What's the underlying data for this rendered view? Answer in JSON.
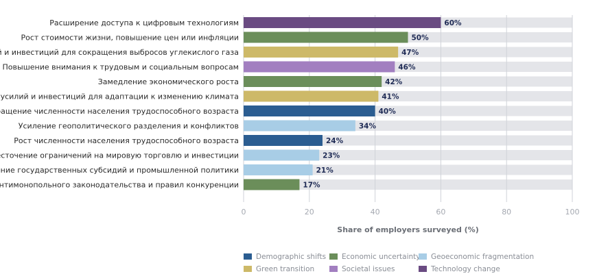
{
  "chart_data": {
    "type": "bar",
    "orientation": "horizontal",
    "categories": [
      "Расширение доступа к цифровым технологиям",
      "Рост стоимости жизни, повышение цен или инфляции",
      "Увеличение усилий и инвестиций для сокращения выбросов углекислого газа",
      "Повышение внимания к трудовым и социальным вопросам",
      "Замедление экономического роста",
      "Увеличение усилий и инвестиций для адаптации к изменению климата",
      "Старение и сокращение численности населения трудоспособного возраста",
      "Усиление геополитического разделения и конфликтов",
      "Рост численности населения трудоспособного возраста",
      "Ужесточение ограничений на мировую торговлю и инвестиции",
      "Увеличение государственных субсидий и промышленной политики",
      "Ужесточение антимонопольного законодательства и правил конкуренции"
    ],
    "values": [
      60,
      50,
      47,
      46,
      42,
      41,
      40,
      34,
      24,
      23,
      21,
      17
    ],
    "value_labels": [
      "60%",
      "50%",
      "47%",
      "46%",
      "42%",
      "41%",
      "40%",
      "34%",
      "24%",
      "23%",
      "21%",
      "17%"
    ],
    "bar_groups": [
      "Technology change",
      "Economic uncertainty",
      "Green transition",
      "Societal issues",
      "Economic uncertainty",
      "Green transition",
      "Demographic shifts",
      "Geoeconomic fragmentation",
      "Demographic shifts",
      "Geoeconomic fragmentation",
      "Geoeconomic fragmentation",
      "Economic uncertainty"
    ],
    "xlabel": "Share of employers surveyed (%)",
    "xlim": [
      0,
      100
    ],
    "xticks": [
      "0",
      "20",
      "40",
      "60",
      "80",
      "100"
    ],
    "grid": true,
    "legend_position": "bottom",
    "legend": [
      {
        "name": "Demographic shifts",
        "color": "#2b5d91"
      },
      {
        "name": "Economic uncertainty",
        "color": "#6b8e5a"
      },
      {
        "name": "Geoeconomic fragmentation",
        "color": "#a8cde6"
      },
      {
        "name": "Green transition",
        "color": "#cdb968"
      },
      {
        "name": "Societal issues",
        "color": "#a27fc0"
      },
      {
        "name": "Technology change",
        "color": "#6a4b82"
      }
    ],
    "colors": {
      "track": "#e4e5e9",
      "gridline": "#cfd2d8",
      "value_label": "#1f2b55",
      "tick_label": "#a5a9b1",
      "axis_title": "#6b6f76",
      "category_label": "#2a2a2a",
      "legend_text": "#8a8e96"
    }
  }
}
